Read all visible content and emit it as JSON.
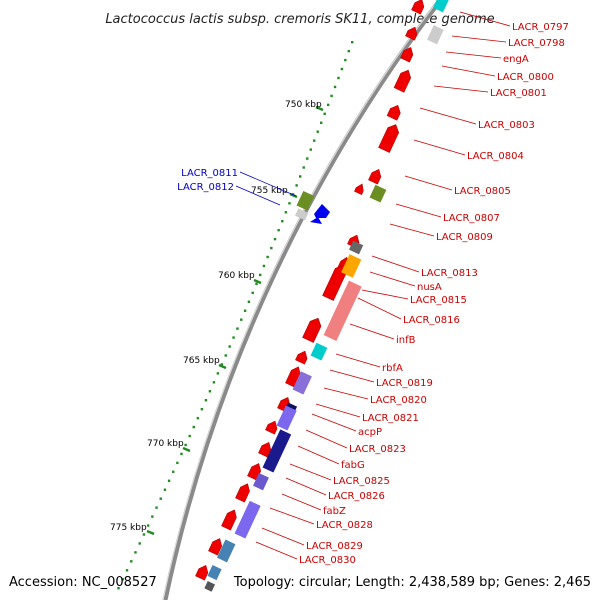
{
  "title": "Lactococcus lactis subsp. cremoris SK11, complete genome",
  "footer": {
    "accession": "Accession: NC_008527",
    "topology": "Topology: circular; Length: 2,438,589 bp; Genes: 2,465"
  },
  "ticks": [
    {
      "label": "750 kbp",
      "pos": 750
    },
    {
      "label": "755 kbp",
      "pos": 755
    },
    {
      "label": "760 kbp",
      "pos": 760
    },
    {
      "label": "765 kbp",
      "pos": 765
    },
    {
      "label": "770 kbp",
      "pos": 770
    },
    {
      "label": "775 kbp",
      "pos": 775
    }
  ],
  "gene_labels": [
    {
      "text": "LACR_0797",
      "color": "#cc0000"
    },
    {
      "text": "LACR_0798",
      "color": "#cc0000"
    },
    {
      "text": "engA",
      "color": "#cc0000"
    },
    {
      "text": "LACR_0800",
      "color": "#cc0000"
    },
    {
      "text": "LACR_0801",
      "color": "#cc0000"
    },
    {
      "text": "LACR_0803",
      "color": "#cc0000"
    },
    {
      "text": "LACR_0804",
      "color": "#cc0000"
    },
    {
      "text": "LACR_0805",
      "color": "#cc0000"
    },
    {
      "text": "LACR_0807",
      "color": "#cc0000"
    },
    {
      "text": "LACR_0809",
      "color": "#cc0000"
    },
    {
      "text": "LACR_0813",
      "color": "#cc0000"
    },
    {
      "text": "nusA",
      "color": "#cc0000"
    },
    {
      "text": "LACR_0815",
      "color": "#cc0000"
    },
    {
      "text": "LACR_0816",
      "color": "#cc0000"
    },
    {
      "text": "infB",
      "color": "#cc0000"
    },
    {
      "text": "rbfA",
      "color": "#cc0000"
    },
    {
      "text": "LACR_0819",
      "color": "#cc0000"
    },
    {
      "text": "LACR_0820",
      "color": "#cc0000"
    },
    {
      "text": "LACR_0821",
      "color": "#cc0000"
    },
    {
      "text": "acpP",
      "color": "#cc0000"
    },
    {
      "text": "LACR_0823",
      "color": "#cc0000"
    },
    {
      "text": "fabG",
      "color": "#cc0000"
    },
    {
      "text": "LACR_0825",
      "color": "#cc0000"
    },
    {
      "text": "LACR_0826",
      "color": "#cc0000"
    },
    {
      "text": "fabZ",
      "color": "#cc0000"
    },
    {
      "text": "LACR_0828",
      "color": "#cc0000"
    },
    {
      "text": "LACR_0829",
      "color": "#cc0000"
    },
    {
      "text": "LACR_0830",
      "color": "#cc0000"
    },
    {
      "text": "LACR_0811",
      "color": "#0000cc"
    },
    {
      "text": "LACR_0812",
      "color": "#0000cc"
    }
  ],
  "colors": {
    "backbone": "#8a8a8a",
    "forward_gene": "#ee0000",
    "cog_dots": "#228b22"
  }
}
